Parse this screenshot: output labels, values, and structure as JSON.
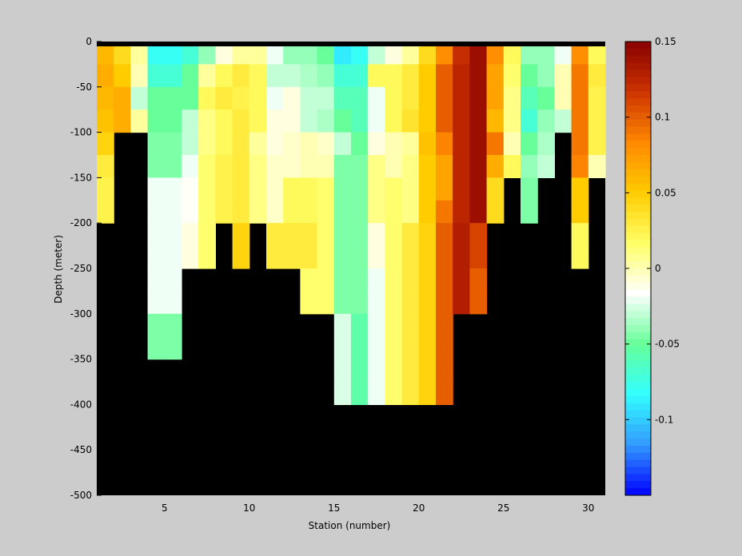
{
  "chart_data": {
    "type": "heatmap",
    "title": "",
    "xlabel": "Station (number)",
    "ylabel": "Depth (meter)",
    "xlim": [
      1,
      31
    ],
    "ylim": [
      -500,
      0
    ],
    "x_ticks": [
      5,
      10,
      15,
      20,
      25,
      30
    ],
    "y_ticks": [
      0,
      -50,
      -100,
      -150,
      -200,
      -250,
      -300,
      -350,
      -400,
      -450,
      -500
    ],
    "background_color": "#000000",
    "colorbar": {
      "range": [
        -0.15,
        0.15
      ],
      "ticks": [
        0.15,
        0.1,
        0.05,
        0,
        -0.05,
        -0.1
      ],
      "colormap": [
        "#0000ff",
        "#3399ff",
        "#33ffff",
        "#66ff99",
        "#ffffff",
        "#ffff66",
        "#ffcc00",
        "#ff8800",
        "#cc3300",
        "#880000"
      ]
    },
    "depth_bins": [
      0,
      -25,
      -50,
      -75,
      -100,
      -125,
      -150,
      -175,
      -200,
      -225,
      -250,
      -275,
      -300,
      -325,
      -350,
      -375,
      -400
    ],
    "stations": [
      1,
      2,
      3,
      4,
      5,
      6,
      7,
      8,
      9,
      10,
      11,
      12,
      13,
      14,
      15,
      16,
      17,
      18,
      19,
      20,
      21,
      22,
      23,
      24,
      25,
      26,
      27,
      28,
      29,
      30
    ],
    "values": [
      [
        0.06,
        0.065,
        0.06,
        0.055,
        0.045,
        0.03,
        0.025,
        0.025
      ],
      [
        0.04,
        0.05,
        0.065,
        0.065
      ],
      [
        0.005,
        0.0,
        -0.03,
        0.005
      ],
      [
        -0.08,
        -0.07,
        -0.05,
        -0.05,
        -0.045,
        -0.045,
        -0.02,
        -0.02,
        -0.02,
        -0.02,
        -0.02,
        -0.02,
        -0.045,
        -0.045
      ],
      [
        -0.08,
        -0.07,
        -0.05,
        -0.05,
        -0.045,
        -0.045,
        -0.02,
        -0.02,
        -0.02,
        -0.02,
        -0.02,
        -0.02,
        -0.045,
        -0.045
      ],
      [
        -0.07,
        -0.05,
        -0.05,
        -0.03,
        -0.03,
        -0.02,
        -0.015,
        -0.015,
        -0.01,
        -0.01
      ],
      [
        -0.04,
        0.005,
        0.02,
        0.01,
        0.01,
        0.015,
        0.015,
        0.015,
        0.015,
        0.015
      ],
      [
        -0.01,
        0.02,
        0.03,
        0.02,
        0.02,
        0.025,
        0.025,
        0.025
      ],
      [
        0.005,
        0.03,
        0.025,
        0.03,
        0.03,
        0.03,
        0.03,
        0.03,
        0.045,
        0.045
      ],
      [
        0.005,
        0.02,
        0.02,
        0.02,
        0.005,
        0.01,
        0.01,
        0.01
      ],
      [
        -0.02,
        -0.03,
        -0.02,
        -0.01,
        -0.01,
        -0.005,
        -0.005,
        -0.005,
        0.03,
        0.03
      ],
      [
        -0.04,
        -0.03,
        -0.01,
        -0.01,
        -0.005,
        -0.005,
        0.02,
        0.02,
        0.03,
        0.03
      ],
      [
        -0.04,
        -0.035,
        -0.03,
        -0.03,
        0.0,
        0.0,
        0.02,
        0.02,
        0.03,
        0.03,
        0.015,
        0.015
      ],
      [
        -0.05,
        -0.04,
        -0.03,
        -0.035,
        -0.005,
        0.0,
        0.015,
        0.015,
        0.015,
        0.015,
        0.015,
        0.015
      ],
      [
        -0.09,
        -0.07,
        -0.06,
        -0.05,
        -0.03,
        -0.045,
        -0.045,
        -0.045,
        -0.045,
        -0.045,
        -0.045,
        -0.045,
        -0.025,
        -0.025,
        -0.025,
        -0.025
      ],
      [
        -0.08,
        -0.07,
        -0.06,
        -0.06,
        -0.05,
        -0.045,
        -0.045,
        -0.045,
        -0.045,
        -0.045,
        -0.045,
        -0.045,
        -0.055,
        -0.055,
        -0.055,
        -0.055
      ],
      [
        -0.03,
        0.02,
        -0.02,
        -0.02,
        -0.01,
        0.01,
        0.01,
        0.01,
        -0.01,
        -0.01,
        -0.02,
        -0.02,
        -0.02,
        -0.02,
        -0.02,
        -0.02
      ],
      [
        -0.01,
        0.02,
        0.02,
        0.02,
        0.0,
        0.0,
        0.015,
        0.015,
        0.015,
        0.015,
        0.015,
        0.015,
        0.015,
        0.015,
        0.015,
        0.015
      ],
      [
        0.005,
        0.03,
        0.03,
        0.035,
        0.005,
        0.01,
        0.01,
        0.01,
        0.03,
        0.03,
        0.03,
        0.03,
        0.03,
        0.03,
        0.03,
        0.03
      ],
      [
        0.04,
        0.05,
        0.05,
        0.05,
        0.055,
        0.05,
        0.05,
        0.05,
        0.045,
        0.045,
        0.045,
        0.045,
        0.045,
        0.045,
        0.045,
        0.045
      ],
      [
        0.08,
        0.1,
        0.1,
        0.1,
        0.085,
        0.07,
        0.07,
        0.09,
        0.1,
        0.1,
        0.1,
        0.1,
        0.1,
        0.1,
        0.1,
        0.1
      ],
      [
        0.12,
        0.125,
        0.125,
        0.125,
        0.125,
        0.125,
        0.125,
        0.125,
        0.13,
        0.13,
        0.13,
        0.13
      ],
      [
        0.14,
        0.14,
        0.14,
        0.14,
        0.14,
        0.14,
        0.14,
        0.14,
        0.11,
        0.11,
        0.1,
        0.1
      ],
      [
        0.08,
        0.07,
        0.07,
        0.06,
        0.09,
        0.065,
        0.04,
        0.04
      ],
      [
        0.02,
        0.015,
        0.01,
        0.01,
        0.0,
        0.02
      ],
      [
        -0.04,
        -0.05,
        -0.06,
        -0.07,
        -0.05,
        -0.04,
        -0.045,
        -0.045
      ],
      [
        -0.04,
        -0.04,
        -0.05,
        -0.04,
        -0.035,
        -0.03
      ],
      [
        -0.02,
        0.0,
        0.0,
        -0.03
      ],
      [
        0.08,
        0.09,
        0.09,
        0.09,
        0.09,
        0.085,
        0.05,
        0.05,
        0.02,
        0.02
      ],
      [
        0.02,
        0.03,
        0.025,
        0.025,
        0.025,
        0.0
      ]
    ],
    "grid": false,
    "legend": "colorbar-right"
  }
}
